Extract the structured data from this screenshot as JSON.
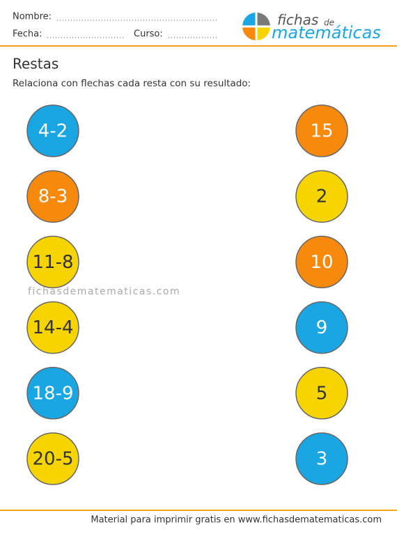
{
  "header": {
    "name_label": "Nombre:",
    "date_label": "Fecha:",
    "course_label": "Curso:"
  },
  "logo": {
    "line1": "fichas",
    "line2": "de",
    "line3": "matemáticas"
  },
  "title": "Restas",
  "instruction": "Relaciona con flechas cada resta con su resultado:",
  "watermark": "fichasdematematicas.com",
  "left": [
    {
      "text": "4-2",
      "color": "#1aa5e3",
      "text_color": "#ffffff"
    },
    {
      "text": "8-3",
      "color": "#f7890c",
      "text_color": "#ffffff"
    },
    {
      "text": "11-8",
      "color": "#f6d400",
      "text_color": "#333333"
    },
    {
      "text": "14-4",
      "color": "#f6d400",
      "text_color": "#333333"
    },
    {
      "text": "18-9",
      "color": "#1aa5e3",
      "text_color": "#ffffff"
    },
    {
      "text": "20-5",
      "color": "#f6d400",
      "text_color": "#333333"
    }
  ],
  "right": [
    {
      "text": 15,
      "color": "#f7890c",
      "text_color": "#ffffff"
    },
    {
      "text": 2,
      "color": "#f6d400",
      "text_color": "#333333"
    },
    {
      "text": 10,
      "color": "#f7890c",
      "text_color": "#ffffff"
    },
    {
      "text": 9,
      "color": "#1aa5e3",
      "text_color": "#ffffff"
    },
    {
      "text": 5,
      "color": "#f6d400",
      "text_color": "#333333"
    },
    {
      "text": 3,
      "color": "#1aa5e3",
      "text_color": "#ffffff"
    }
  ],
  "footer": "Material para imprimir gratis en www.fichasdematematicas.com"
}
